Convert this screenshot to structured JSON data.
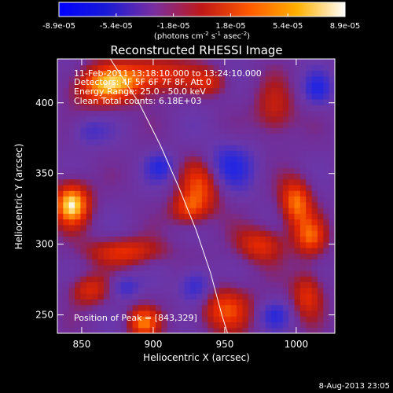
{
  "chart_data": {
    "type": "heatmap",
    "title": "Reconstructed RHESSI Image",
    "xlabel": "Heliocentric X (arcsec)",
    "ylabel": "Heliocentric Y (arcsec)",
    "x_ticks": [
      850,
      900,
      950,
      1000
    ],
    "y_ticks": [
      250,
      300,
      350,
      400
    ],
    "xlim": [
      833,
      1027
    ],
    "ylim": [
      237,
      431
    ],
    "grid": false,
    "colorbar": {
      "ticks": [
        "-8.9e-05",
        "-5.4e-05",
        "-1.8e-05",
        "1.8e-05",
        "5.4e-05",
        "8.9e-05"
      ],
      "range": [
        -8.9e-05,
        8.9e-05
      ],
      "units_prefix": "(photons cm",
      "units_exp1": "-2",
      "units_mid": " s",
      "units_exp2": "-1",
      "units_mid2": " asec",
      "units_exp3": "-2",
      "units_suffix": ")",
      "colors": [
        "#0000ff",
        "#1a1ad6",
        "#7a2fa0",
        "#c01818",
        "#ff5a00",
        "#ffb000",
        "#ffffff"
      ]
    },
    "annotations": {
      "time_range": "11-Feb-2011 13:18:10.000 to 13:24:10.000",
      "detectors": "Detectors: 4F 5F 6F 7F 8F, Att 0",
      "energy": "Energy Range: 25.0 - 50.0 keV",
      "clean": "Clean    Total counts: 6.18E+03",
      "peak": "Position of Peak = [843,329]"
    },
    "limb_curve": [
      [
        870,
        431
      ],
      [
        890,
        400
      ],
      [
        905,
        370
      ],
      [
        918,
        340
      ],
      [
        930,
        310
      ],
      [
        940,
        280
      ],
      [
        948,
        250
      ],
      [
        952,
        237
      ]
    ],
    "blobs": [
      {
        "x": 843,
        "y": 329,
        "sx": 9,
        "sy": 11,
        "v": 1.0
      },
      {
        "x": 866,
        "y": 412,
        "sx": 16,
        "sy": 10,
        "v": 0.8
      },
      {
        "x": 900,
        "y": 420,
        "sx": 18,
        "sy": 9,
        "v": 0.65
      },
      {
        "x": 935,
        "y": 345,
        "sx": 11,
        "sy": 14,
        "v": 0.7
      },
      {
        "x": 925,
        "y": 325,
        "sx": 9,
        "sy": 8,
        "v": 0.55
      },
      {
        "x": 1000,
        "y": 330,
        "sx": 8,
        "sy": 12,
        "v": 0.75
      },
      {
        "x": 1010,
        "y": 305,
        "sx": 8,
        "sy": 10,
        "v": 0.6
      },
      {
        "x": 975,
        "y": 300,
        "sx": 12,
        "sy": 9,
        "v": 0.55
      },
      {
        "x": 880,
        "y": 295,
        "sx": 20,
        "sy": 7,
        "v": 0.55
      },
      {
        "x": 893,
        "y": 245,
        "sx": 8,
        "sy": 8,
        "v": 0.7
      },
      {
        "x": 950,
        "y": 255,
        "sx": 14,
        "sy": 12,
        "v": 0.6
      },
      {
        "x": 855,
        "y": 268,
        "sx": 10,
        "sy": 8,
        "v": 0.5
      },
      {
        "x": 985,
        "y": 395,
        "sx": 10,
        "sy": 14,
        "v": 0.45
      },
      {
        "x": 1008,
        "y": 265,
        "sx": 8,
        "sy": 12,
        "v": 0.55
      },
      {
        "x": 940,
        "y": 415,
        "sx": 10,
        "sy": 7,
        "v": 0.4
      },
      {
        "x": 950,
        "y": 355,
        "sx": 14,
        "sy": 12,
        "v": -0.6
      },
      {
        "x": 930,
        "y": 270,
        "sx": 8,
        "sy": 9,
        "v": -0.55
      },
      {
        "x": 905,
        "y": 355,
        "sx": 7,
        "sy": 7,
        "v": -0.45
      },
      {
        "x": 1015,
        "y": 410,
        "sx": 7,
        "sy": 8,
        "v": -0.5
      },
      {
        "x": 880,
        "y": 270,
        "sx": 7,
        "sy": 6,
        "v": -0.4
      },
      {
        "x": 985,
        "y": 250,
        "sx": 8,
        "sy": 7,
        "v": -0.4
      },
      {
        "x": 855,
        "y": 380,
        "sx": 9,
        "sy": 7,
        "v": -0.3
      }
    ]
  },
  "footer": {
    "timestamp": "8-Aug-2013 23:05"
  }
}
